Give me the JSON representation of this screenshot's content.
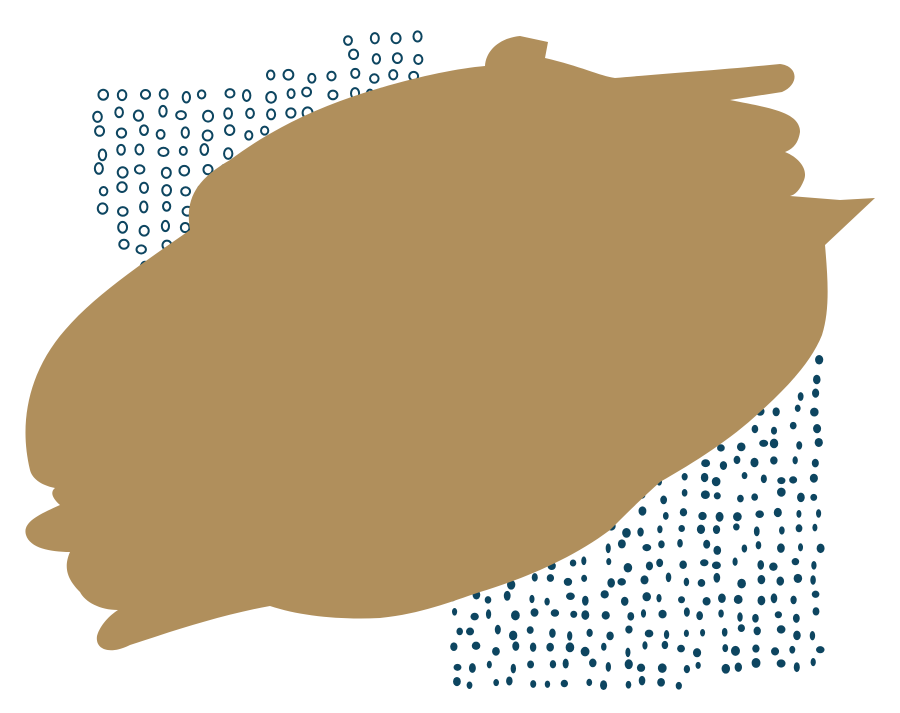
{
  "artwork": {
    "colors": {
      "background": "#ffffff",
      "brush_blob": "#b08f5c",
      "dots": "#0d4560"
    },
    "elements": [
      "open-circle-dot-pattern",
      "filled-dot-pattern",
      "brush-stroke-blob"
    ]
  }
}
